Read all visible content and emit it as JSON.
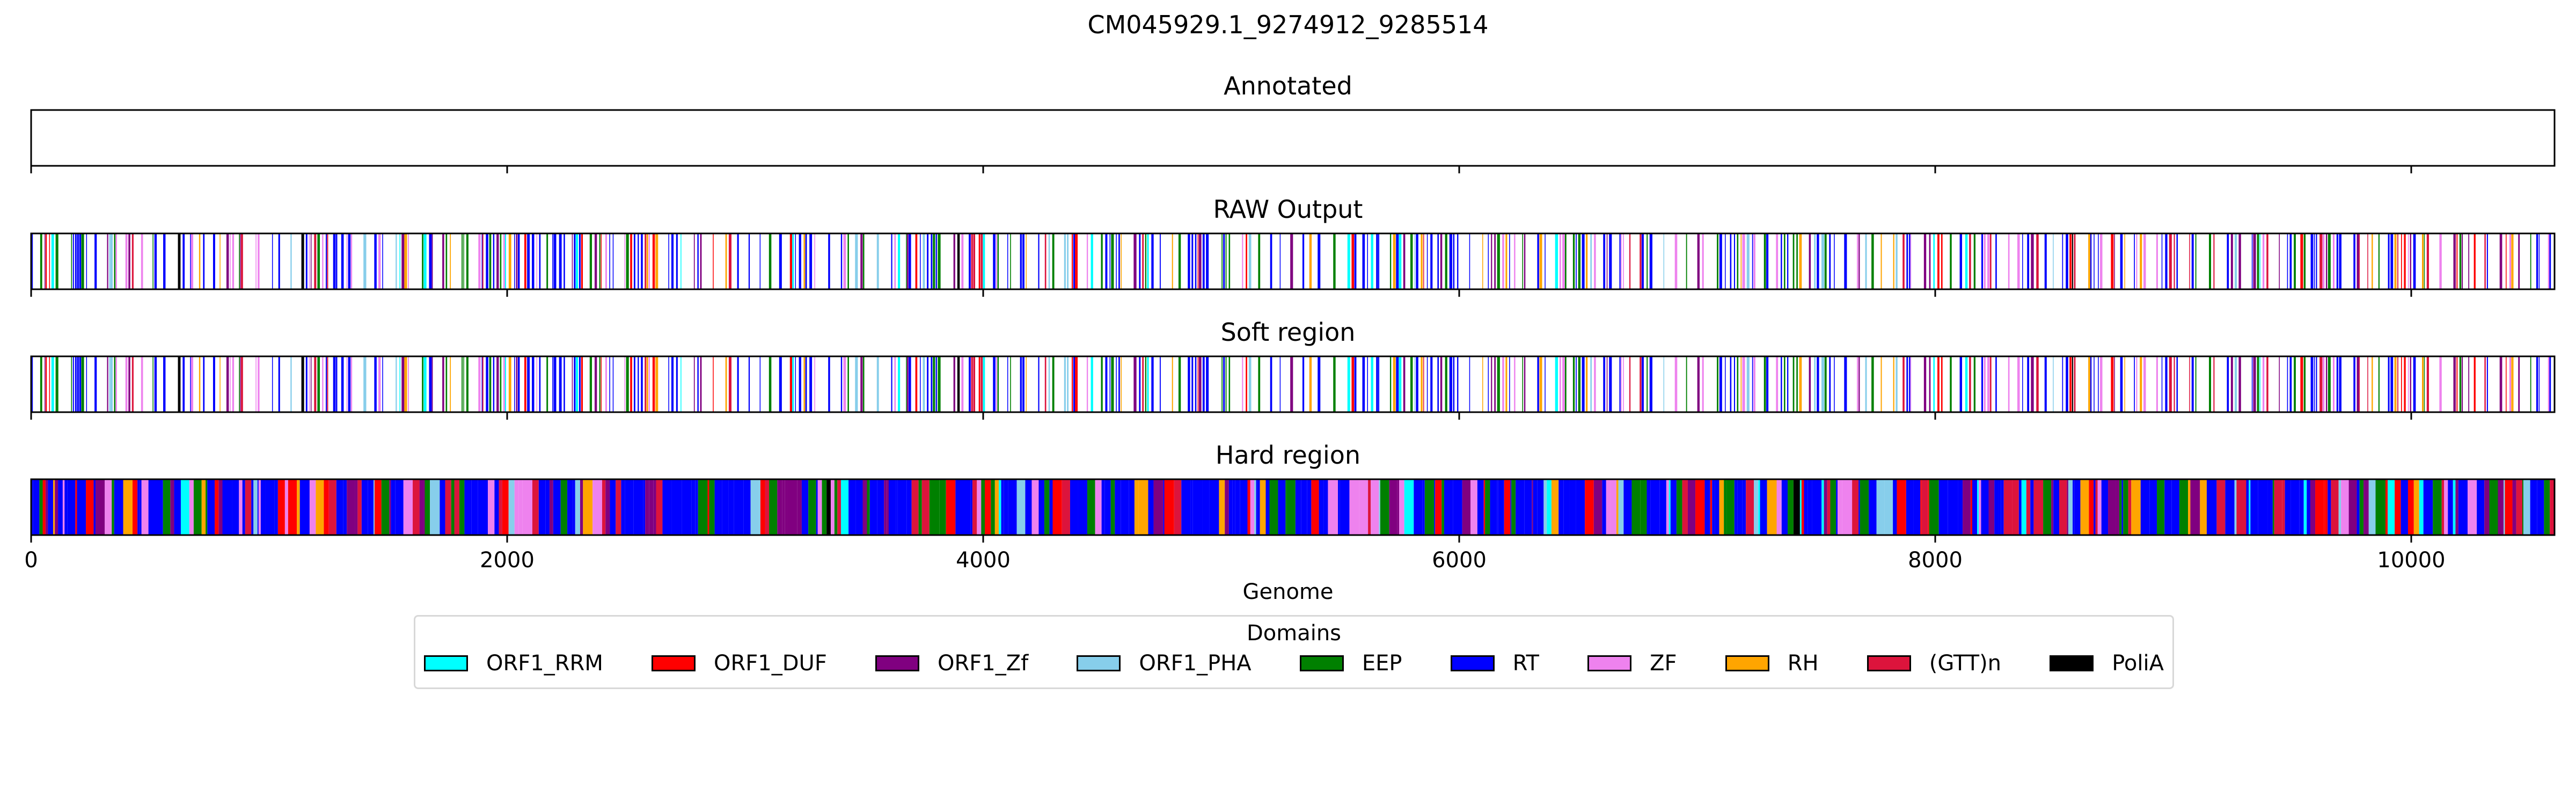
{
  "chart_data": {
    "type": "genome-track",
    "title": "CM045929.1_9274912_9285514",
    "xlabel": "Genome",
    "xlim": [
      0,
      10602
    ],
    "xticks": [
      0,
      2000,
      4000,
      6000,
      8000,
      10000
    ],
    "panels": [
      {
        "title": "Annotated",
        "show_tick_labels": false,
        "segments": []
      },
      {
        "title": "RAW Output",
        "show_tick_labels": false,
        "density": "sparse"
      },
      {
        "title": "Soft region",
        "show_tick_labels": false,
        "density": "sparse"
      },
      {
        "title": "Hard region",
        "show_tick_labels": true,
        "density": "dense"
      }
    ],
    "legend": {
      "title": "Domains",
      "placement": "bottom-center",
      "entries": [
        {
          "name": "ORF1_RRM",
          "color": "#00ffff"
        },
        {
          "name": "ORF1_DUF",
          "color": "#ff0000"
        },
        {
          "name": "ORF1_Zf",
          "color": "#800080"
        },
        {
          "name": "ORF1_PHA",
          "color": "#87ceeb"
        },
        {
          "name": "EEP",
          "color": "#008000"
        },
        {
          "name": "RT",
          "color": "#0000ff"
        },
        {
          "name": "ZF",
          "color": "#ee82ee"
        },
        {
          "name": "RH",
          "color": "#ffa500"
        },
        {
          "name": "(GTT)n",
          "color": "#dc143c"
        },
        {
          "name": "PoliA",
          "color": "#000000"
        }
      ]
    }
  }
}
